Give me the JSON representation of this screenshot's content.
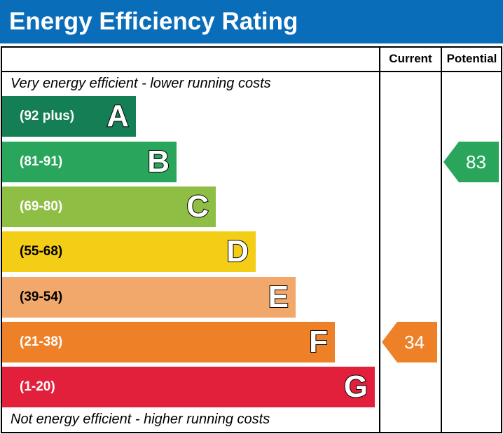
{
  "title": "Energy Efficiency Rating",
  "columns": {
    "current": "Current",
    "potential": "Potential"
  },
  "top_note": "Very energy efficient - lower running costs",
  "bottom_note": "Not energy efficient - higher running costs",
  "colors": {
    "header": "#0a6dba"
  },
  "chart_data": {
    "type": "bar",
    "title": "Energy Efficiency Rating",
    "bands": [
      {
        "letter": "A",
        "range": "(92 plus)",
        "color": "#147f54"
      },
      {
        "letter": "B",
        "range": "(81-91)",
        "color": "#2aa65c"
      },
      {
        "letter": "C",
        "range": "(69-80)",
        "color": "#8fbe45"
      },
      {
        "letter": "D",
        "range": "(55-68)",
        "color": "#f4cd17"
      },
      {
        "letter": "E",
        "range": "(39-54)",
        "color": "#f2a86a"
      },
      {
        "letter": "F",
        "range": "(21-38)",
        "color": "#ee8127"
      },
      {
        "letter": "G",
        "range": "(1-20)",
        "color": "#e3203b"
      }
    ],
    "current": {
      "value": 34,
      "band": "F",
      "color": "#ee8127"
    },
    "potential": {
      "value": 83,
      "band": "B",
      "color": "#2aa65c"
    }
  }
}
